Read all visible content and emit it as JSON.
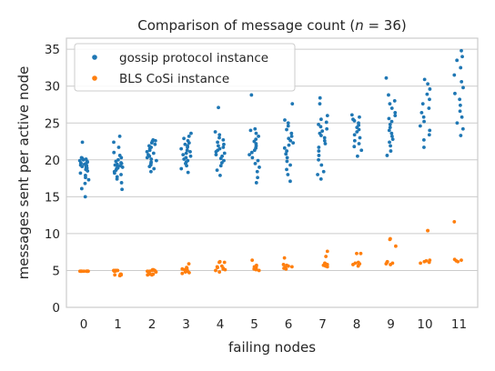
{
  "chart_data": {
    "type": "scatter",
    "title": "Comparison of message count (n = 36)",
    "title_parts": {
      "prefix": "Comparison of message count (",
      "variable": "n",
      "suffix": " = 36)"
    },
    "xlabel": "failing nodes",
    "ylabel": "messages sent per active node",
    "categories": [
      "0",
      "1",
      "2",
      "3",
      "4",
      "5",
      "6",
      "7",
      "8",
      "9",
      "10",
      "11"
    ],
    "ylim": [
      0,
      36.5
    ],
    "yticks": [
      0,
      5,
      10,
      15,
      20,
      25,
      30,
      35
    ],
    "grid": "horizontal",
    "legend_position": "top-left",
    "colors": {
      "gossip": "#1f77b4",
      "bls": "#ff7f0e",
      "grid": "#cccccc",
      "spine": "#cccccc"
    },
    "series": [
      {
        "name": "gossip protocol instance",
        "color": "#1f77b4",
        "values": [
          [
            15.0,
            16.1,
            16.8,
            17.3,
            17.6,
            17.9,
            18.2,
            18.5,
            18.7,
            18.9,
            19.0,
            19.1,
            19.2,
            19.3,
            19.4,
            19.5,
            19.6,
            19.6,
            19.7,
            19.8,
            19.9,
            20.0,
            20.1,
            20.2,
            20.3,
            22.4
          ],
          [
            16.0,
            16.9,
            17.4,
            17.7,
            18.0,
            18.2,
            18.4,
            18.6,
            18.8,
            18.9,
            19.0,
            19.1,
            19.2,
            19.3,
            19.4,
            19.5,
            19.6,
            19.8,
            20.0,
            20.3,
            20.6,
            21.0,
            21.7,
            22.4,
            23.2
          ],
          [
            18.4,
            18.8,
            19.1,
            19.3,
            19.5,
            19.7,
            19.9,
            20.1,
            20.3,
            20.5,
            20.7,
            20.9,
            21.1,
            21.3,
            21.5,
            21.7,
            21.9,
            22.1,
            22.3,
            22.5,
            22.6,
            22.7
          ],
          [
            18.3,
            18.8,
            19.2,
            19.5,
            19.7,
            19.9,
            20.1,
            20.3,
            20.5,
            20.7,
            20.9,
            21.1,
            21.3,
            21.5,
            21.7,
            21.9,
            22.1,
            22.3,
            22.6,
            22.9,
            23.2,
            23.6
          ],
          [
            17.9,
            18.6,
            19.2,
            19.6,
            19.9,
            20.2,
            20.5,
            20.7,
            20.9,
            21.1,
            21.3,
            21.5,
            21.7,
            21.9,
            22.1,
            22.4,
            22.7,
            23.0,
            23.4,
            23.8,
            27.1
          ],
          [
            16.9,
            17.6,
            18.4,
            19.0,
            19.5,
            19.9,
            20.3,
            20.7,
            21.0,
            21.3,
            21.6,
            21.9,
            22.2,
            22.5,
            22.8,
            23.2,
            23.6,
            24.0,
            24.2,
            28.8
          ],
          [
            17.1,
            18.0,
            18.7,
            19.3,
            19.8,
            20.3,
            20.8,
            21.2,
            21.6,
            22.0,
            22.3,
            22.6,
            22.9,
            23.2,
            23.6,
            24.1,
            24.6,
            25.0,
            25.4,
            27.6
          ],
          [
            17.4,
            18.0,
            18.4,
            19.3,
            20.0,
            20.6,
            21.2,
            21.7,
            22.2,
            22.6,
            23.0,
            23.3,
            23.6,
            23.9,
            24.2,
            24.5,
            24.8,
            25.1,
            25.5,
            26.0,
            27.6,
            28.4
          ],
          [
            20.5,
            21.3,
            21.8,
            22.2,
            22.6,
            23.0,
            23.4,
            23.8,
            24.1,
            24.4,
            24.7,
            25.0,
            25.3,
            25.5,
            25.8,
            26.1
          ],
          [
            20.6,
            21.2,
            21.9,
            22.4,
            22.8,
            23.2,
            23.6,
            24.0,
            24.4,
            24.8,
            25.2,
            25.6,
            26.0,
            26.4,
            27.0,
            27.6,
            28.0,
            28.8,
            31.1
          ],
          [
            21.7,
            22.7,
            23.4,
            24.0,
            24.6,
            25.2,
            25.8,
            26.4,
            27.0,
            27.6,
            28.2,
            28.9,
            29.6,
            30.3,
            30.9
          ],
          [
            23.3,
            24.2,
            25.0,
            25.8,
            26.6,
            27.4,
            28.2,
            29.0,
            29.8,
            30.6,
            31.5,
            32.5,
            33.5,
            34.0,
            34.8
          ]
        ]
      },
      {
        "name": "BLS CoSi instance",
        "color": "#ff7f0e",
        "values": [
          [
            4.9,
            4.9,
            4.9,
            4.9,
            4.9,
            4.9,
            4.9,
            4.9,
            4.9,
            4.9,
            4.9,
            4.9
          ],
          [
            4.3,
            4.3,
            4.4,
            4.4,
            4.5,
            4.5,
            4.9,
            4.9,
            5.0,
            5.0,
            5.0,
            5.0
          ],
          [
            4.4,
            4.4,
            4.5,
            4.5,
            4.8,
            4.8,
            4.9,
            4.9,
            5.0,
            5.0,
            5.1,
            5.1
          ],
          [
            4.6,
            4.7,
            4.8,
            4.9,
            5.0,
            5.1,
            5.2,
            5.3,
            5.4,
            5.9
          ],
          [
            4.8,
            5.0,
            5.1,
            5.2,
            5.3,
            5.4,
            5.5,
            5.6,
            6.1,
            6.1,
            6.2
          ],
          [
            5.0,
            5.1,
            5.2,
            5.3,
            5.4,
            5.5,
            5.6,
            5.7,
            6.4
          ],
          [
            5.2,
            5.3,
            5.4,
            5.5,
            5.6,
            5.7,
            5.8,
            6.7
          ],
          [
            5.5,
            5.6,
            5.7,
            5.8,
            5.9,
            6.0,
            6.9,
            7.6
          ],
          [
            5.6,
            5.7,
            5.8,
            5.9,
            6.0,
            6.1,
            7.3,
            7.3
          ],
          [
            5.8,
            5.9,
            6.0,
            6.1,
            6.2,
            8.3,
            9.2,
            9.3
          ],
          [
            6.0,
            6.1,
            6.2,
            6.3,
            6.4,
            10.4,
            10.4
          ],
          [
            6.2,
            6.3,
            6.4,
            6.5,
            11.6
          ]
        ]
      }
    ]
  }
}
